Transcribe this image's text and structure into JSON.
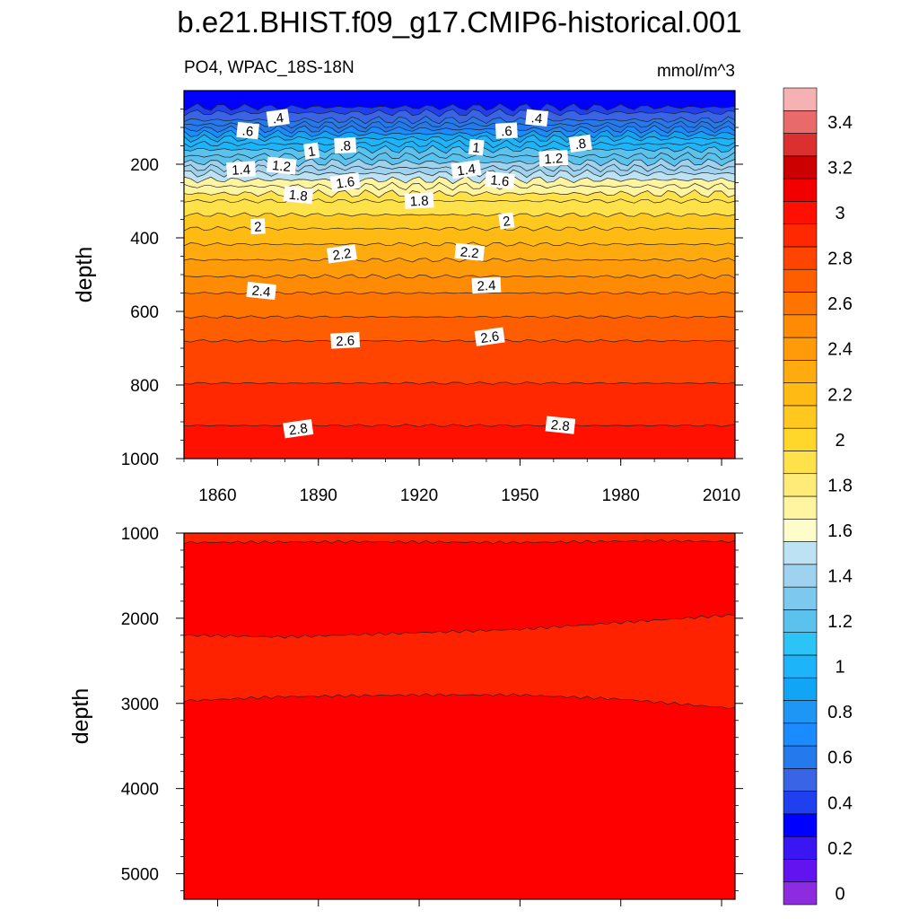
{
  "title": "b.e21.BHIST.f09_g17.CMIP6-historical.001",
  "subtitle_left": "PO4, WPAC_18S-18N",
  "subtitle_right": "mmol/m^3",
  "colors": {
    "levels": [
      "#8c2be0",
      "#6213f0",
      "#3a16f2",
      "#0000ff",
      "#2040f0",
      "#3a64e6",
      "#2479ec",
      "#1a8cff",
      "#1e96f5",
      "#12a5f5",
      "#1eb4fa",
      "#2cc4f6",
      "#5bc2ee",
      "#7cc8ee",
      "#9ed2ee",
      "#bde2f4",
      "#fffccc",
      "#fff4a0",
      "#ffec78",
      "#ffe24a",
      "#ffd62a",
      "#ffc81e",
      "#ffbb14",
      "#ffaa0e",
      "#ff9a08",
      "#ff8a04",
      "#ff7400",
      "#ff5e00",
      "#ff4400",
      "#ff2800",
      "#ff1000",
      "#f20000",
      "#cc0000",
      "#dc3030",
      "#e86a6a",
      "#f6b2b2"
    ]
  },
  "chart_data": [
    {
      "type": "heatmap",
      "panel": "upper",
      "variable": "PO4",
      "region": "WPAC_18S-18N",
      "units": "mmol/m^3",
      "ylabel": "depth",
      "ylim": [
        1000,
        0
      ],
      "xlim": [
        1850,
        2014
      ],
      "x_ticks": [
        "1860",
        "1890",
        "1920",
        "1950",
        "1980",
        "2010"
      ],
      "y_ticks": [
        "200",
        "400",
        "600",
        "800",
        "1000"
      ],
      "contour_interval": 0.1,
      "contour_depths": [
        {
          "level": 0.3,
          "depth": 60
        },
        {
          "level": 0.4,
          "depth": 80
        },
        {
          "level": 0.6,
          "depth": 105
        },
        {
          "level": 0.8,
          "depth": 130
        },
        {
          "level": 1.0,
          "depth": 160
        },
        {
          "level": 1.2,
          "depth": 195
        },
        {
          "level": 1.4,
          "depth": 225
        },
        {
          "level": 1.6,
          "depth": 260
        },
        {
          "level": 1.8,
          "depth": 300
        },
        {
          "level": 2.0,
          "depth": 375
        },
        {
          "level": 2.2,
          "depth": 460
        },
        {
          "level": 2.4,
          "depth": 550
        },
        {
          "level": 2.6,
          "depth": 680
        },
        {
          "level": 2.8,
          "depth": 910
        }
      ],
      "contour_labels": [
        {
          "text": ".4",
          "x": 1878,
          "depth": 75
        },
        {
          "text": ".6",
          "x": 1869,
          "depth": 110
        },
        {
          "text": ".8",
          "x": 1898,
          "depth": 150
        },
        {
          "text": "1",
          "x": 1888,
          "depth": 165
        },
        {
          "text": "1.2",
          "x": 1879,
          "depth": 205
        },
        {
          "text": "1.4",
          "x": 1867,
          "depth": 215
        },
        {
          "text": "1.6",
          "x": 1898,
          "depth": 250
        },
        {
          "text": "1.8",
          "x": 1884,
          "depth": 285
        },
        {
          "text": "2",
          "x": 1872,
          "depth": 370
        },
        {
          "text": "2.2",
          "x": 1897,
          "depth": 445
        },
        {
          "text": "2.4",
          "x": 1873,
          "depth": 545
        },
        {
          "text": "2.6",
          "x": 1898,
          "depth": 680
        },
        {
          "text": "2.8",
          "x": 1884,
          "depth": 920
        },
        {
          "text": ".4",
          "x": 1955,
          "depth": 75
        },
        {
          "text": ".6",
          "x": 1946,
          "depth": 110
        },
        {
          "text": ".8",
          "x": 1968,
          "depth": 145
        },
        {
          "text": "1",
          "x": 1937,
          "depth": 155
        },
        {
          "text": "1.2",
          "x": 1960,
          "depth": 185
        },
        {
          "text": "1.4",
          "x": 1934,
          "depth": 215
        },
        {
          "text": "1.6",
          "x": 1944,
          "depth": 245
        },
        {
          "text": "1.8",
          "x": 1920,
          "depth": 300
        },
        {
          "text": "2",
          "x": 1946,
          "depth": 355
        },
        {
          "text": "2.2",
          "x": 1935,
          "depth": 440
        },
        {
          "text": "2.4",
          "x": 1940,
          "depth": 530
        },
        {
          "text": "2.6",
          "x": 1941,
          "depth": 670
        },
        {
          "text": "2.8",
          "x": 1962,
          "depth": 910
        }
      ]
    },
    {
      "type": "heatmap",
      "panel": "lower",
      "variable": "PO4",
      "ylabel": "depth",
      "ylim": [
        5300,
        1000
      ],
      "xlim": [
        1850,
        2014
      ],
      "y_ticks": [
        "1000",
        "2000",
        "3000",
        "4000",
        "5000"
      ],
      "regions": [
        {
          "from_depth": 1000,
          "to_depth": 1100,
          "level_range": "2.9-3.0"
        },
        {
          "from_depth": 1100,
          "to_depth": 2200,
          "level_range": "3.0-3.1"
        },
        {
          "from_depth": 2200,
          "to_depth": 2950,
          "level_range": "2.9-3.0"
        },
        {
          "from_depth": 2950,
          "to_depth": 5300,
          "level_range": "3.0-3.1"
        }
      ],
      "boundaries": [
        {
          "name": "upper",
          "points": [
            [
              1850,
              1110
            ],
            [
              1900,
              1100
            ],
            [
              1950,
              1110
            ],
            [
              1990,
              1090
            ],
            [
              2014,
              1100
            ]
          ]
        },
        {
          "name": "middle",
          "points": [
            [
              1850,
              2200
            ],
            [
              1880,
              2220
            ],
            [
              1920,
              2170
            ],
            [
              1950,
              2130
            ],
            [
              1980,
              2050
            ],
            [
              2014,
              1960
            ]
          ]
        },
        {
          "name": "lower",
          "points": [
            [
              1850,
              2970
            ],
            [
              1880,
              2920
            ],
            [
              1920,
              2900
            ],
            [
              1950,
              2900
            ],
            [
              1980,
              2950
            ],
            [
              2014,
              3060
            ]
          ]
        }
      ]
    }
  ],
  "colorbar": {
    "labels": [
      "0",
      "0.2",
      "0.4",
      "0.6",
      "0.8",
      "1",
      "1.2",
      "1.4",
      "1.6",
      "1.8",
      "2",
      "2.2",
      "2.4",
      "2.6",
      "2.8",
      "3",
      "3.2",
      "3.4"
    ]
  }
}
